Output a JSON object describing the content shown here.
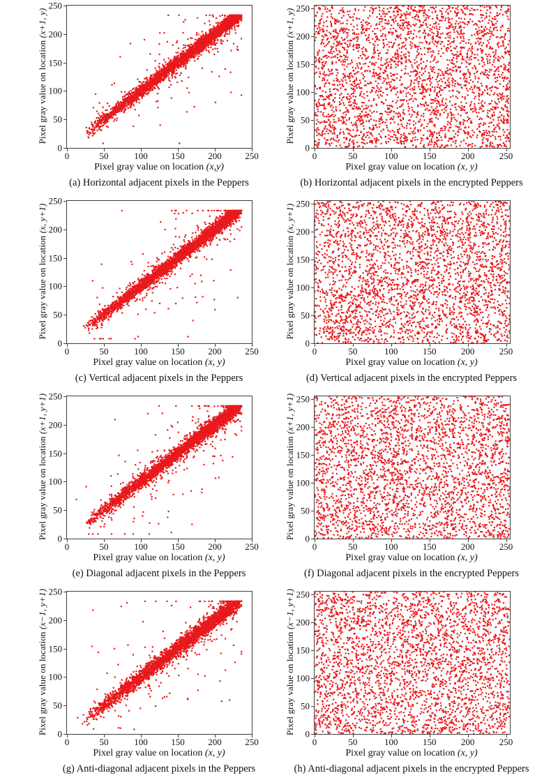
{
  "figure": {
    "dot_color": "#e8191c",
    "frame_color": "#3d3d3d",
    "text_color": "#111111",
    "description": "Correlation analysis of adjacent pixels in the Peppers image (left column) and the encrypted Peppers image (right column)"
  },
  "chart_data": [
    {
      "type": "scatter",
      "id": "a",
      "caption": "(a) Horizontal adjacent pixels in the Peppers",
      "xlabel_prefix": "Pixel gray value on location ",
      "xlabel_math": "(x,y)",
      "ylabel_prefix": "Pixel gray value on location ",
      "ylabel_math": "(x+1, y)",
      "xlim": [
        0,
        250
      ],
      "ylim": [
        0,
        250
      ],
      "x_ticks": [
        0,
        50,
        100,
        150,
        200,
        250
      ],
      "y_ticks": [
        0,
        50,
        100,
        150,
        200,
        250
      ],
      "pattern": "correlated",
      "n_points": 3600,
      "seed": 11,
      "value_range": [
        25,
        232
      ],
      "band_sigma": 4.5,
      "outlier_rate": 0.035,
      "note": "Strong positive correlation: dense band along y = x from about (25,25) to (232,222) with sparse outliers"
    },
    {
      "type": "scatter",
      "id": "b",
      "caption": "(b) Horizontal adjacent pixels in the encrypted Peppers",
      "xlabel_prefix": "Pixel gray value on location ",
      "xlabel_math": "(x, y)",
      "ylabel_prefix": "Pixel gray value on location ",
      "ylabel_math": "(x+1, y)",
      "xlim": [
        0,
        255
      ],
      "ylim": [
        0,
        255
      ],
      "x_ticks": [
        0,
        50,
        100,
        150,
        200,
        250
      ],
      "y_ticks": [
        0,
        50,
        100,
        150,
        200,
        250
      ],
      "pattern": "uniform",
      "n_points": 3000,
      "seed": 22,
      "note": "No correlation: points uniformly distributed over 0-255 in both axes"
    },
    {
      "type": "scatter",
      "id": "c",
      "caption": "(c) Vertical adjacent pixels in the Peppers",
      "xlabel_prefix": "Pixel gray value on location ",
      "xlabel_math": "(x, y)",
      "ylabel_prefix": "Pixel gray value on location ",
      "ylabel_math": "(x, y+1)",
      "xlim": [
        0,
        250
      ],
      "ylim": [
        0,
        250
      ],
      "x_ticks": [
        0,
        50,
        100,
        150,
        200,
        250
      ],
      "y_ticks": [
        0,
        50,
        100,
        150,
        200,
        250
      ],
      "pattern": "correlated",
      "n_points": 3600,
      "seed": 33,
      "value_range": [
        25,
        232
      ],
      "band_sigma": 4.5,
      "outlier_rate": 0.035,
      "note": "Strong positive correlation along y = x diagonal band with sparse outliers"
    },
    {
      "type": "scatter",
      "id": "d",
      "caption": "(d) Vertical adjacent pixels in the encrypted Peppers",
      "xlabel_prefix": "Pixel gray value on location ",
      "xlabel_math": "(x, y)",
      "ylabel_prefix": "Pixel gray value on location ",
      "ylabel_math": "(x, y+1)",
      "xlim": [
        0,
        255
      ],
      "ylim": [
        0,
        255
      ],
      "x_ticks": [
        0,
        50,
        100,
        150,
        200,
        250
      ],
      "y_ticks": [
        0,
        50,
        100,
        150,
        200,
        250
      ],
      "pattern": "uniform",
      "n_points": 3000,
      "seed": 44,
      "note": "No correlation: points uniformly distributed over 0-255 in both axes"
    },
    {
      "type": "scatter",
      "id": "e",
      "caption": "(e) Diagonal adjacent pixels in the Peppers",
      "xlabel_prefix": "Pixel gray value on location ",
      "xlabel_math": "(x, y)",
      "ylabel_prefix": "Pixel gray value on location ",
      "ylabel_math": "(x+1, y+1)",
      "xlim": [
        0,
        250
      ],
      "ylim": [
        0,
        250
      ],
      "x_ticks": [
        0,
        50,
        100,
        150,
        200,
        250
      ],
      "y_ticks": [
        0,
        50,
        100,
        150,
        200,
        250
      ],
      "pattern": "correlated",
      "n_points": 3500,
      "seed": 55,
      "value_range": [
        25,
        232
      ],
      "band_sigma": 5,
      "outlier_rate": 0.04,
      "note": "Strong positive correlation along y = x diagonal band, slightly wider spread than horizontal"
    },
    {
      "type": "scatter",
      "id": "f",
      "caption": "(f) Diagonal adjacent pixels in the encrypted Peppers",
      "xlabel_prefix": "Pixel gray value on location ",
      "xlabel_math": "(x, y)",
      "ylabel_prefix": "Pixel gray value on location ",
      "ylabel_math": "(x+1, y+1)",
      "xlim": [
        0,
        255
      ],
      "ylim": [
        0,
        255
      ],
      "x_ticks": [
        0,
        50,
        100,
        150,
        200,
        250
      ],
      "y_ticks": [
        0,
        50,
        100,
        150,
        200,
        250
      ],
      "pattern": "uniform",
      "n_points": 3000,
      "seed": 66,
      "note": "No correlation: points uniformly distributed over 0-255 in both axes"
    },
    {
      "type": "scatter",
      "id": "g",
      "caption": "(g) Anti-diagonal adjacent pixels in the Peppers",
      "xlabel_prefix": "Pixel gray value on location ",
      "xlabel_math": "(x, y)",
      "ylabel_prefix": "Pixel gray value on location ",
      "ylabel_math": "(x−1, y+1)",
      "xlim": [
        0,
        250
      ],
      "ylim": [
        0,
        250
      ],
      "x_ticks": [
        0,
        50,
        100,
        150,
        200,
        250
      ],
      "y_ticks": [
        0,
        50,
        100,
        150,
        200,
        250
      ],
      "pattern": "correlated",
      "n_points": 3400,
      "seed": 77,
      "value_range": [
        25,
        230
      ],
      "band_sigma": 5.5,
      "outlier_rate": 0.045,
      "note": "Strong positive correlation along y = x diagonal band, widest spread of the four plain-image plots"
    },
    {
      "type": "scatter",
      "id": "h",
      "caption": "(h) Anti-diagonal adjacent pixels in the encrypted Peppers",
      "xlabel_prefix": "Pixel gray value on location ",
      "xlabel_math": "(x, y)",
      "ylabel_prefix": "Pixel gray value on location ",
      "ylabel_math": "(x−1, y+1)",
      "xlim": [
        0,
        255
      ],
      "ylim": [
        0,
        255
      ],
      "x_ticks": [
        0,
        50,
        100,
        150,
        200,
        250
      ],
      "y_ticks": [
        0,
        50,
        100,
        150,
        200,
        250
      ],
      "pattern": "uniform",
      "n_points": 3000,
      "seed": 88,
      "note": "No correlation: points uniformly distributed over 0-255 in both axes"
    }
  ]
}
